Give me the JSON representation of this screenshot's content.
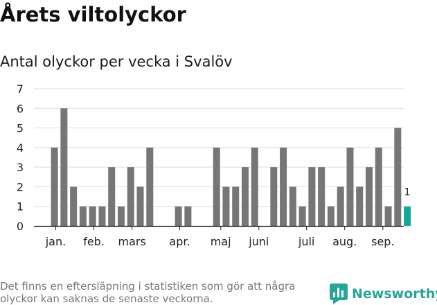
{
  "header": {
    "title": "Årets viltolyckor",
    "subtitle": "Antal olyckor per vecka i Svalöv"
  },
  "footer": {
    "note": "Det finns en eftersläpning i statistiken som gör att några olyckor kan saknas de senaste veckorna.",
    "brand": "Newsworthy"
  },
  "colors": {
    "bar": "#767676",
    "highlight": "#13a89e",
    "grid": "#dddddd",
    "axis": "#222222",
    "brand": "#26a69a"
  },
  "chart_data": {
    "type": "bar",
    "ylim": [
      0,
      7
    ],
    "yticks": [
      0,
      1,
      2,
      3,
      4,
      5,
      6,
      7
    ],
    "grid": true,
    "values": [
      4,
      6,
      2,
      1,
      1,
      1,
      3,
      1,
      3,
      2,
      4,
      0,
      0,
      1,
      1,
      0,
      0,
      4,
      2,
      2,
      3,
      4,
      0,
      3,
      4,
      2,
      1,
      3,
      3,
      1,
      2,
      4,
      2,
      3,
      4,
      1,
      5,
      1
    ],
    "highlight_index": 37,
    "highlight_label": "1",
    "month_labels": [
      {
        "label": "jan.",
        "at_bar": 0.5
      },
      {
        "label": "feb.",
        "at_bar": 4.5
      },
      {
        "label": "mars",
        "at_bar": 8.5
      },
      {
        "label": "apr.",
        "at_bar": 13.5
      },
      {
        "label": "maj",
        "at_bar": 17.8
      },
      {
        "label": "juni",
        "at_bar": 21.8
      },
      {
        "label": "juli",
        "at_bar": 26.8
      },
      {
        "label": "aug.",
        "at_bar": 30.8
      },
      {
        "label": "sep.",
        "at_bar": 34.8
      }
    ]
  }
}
